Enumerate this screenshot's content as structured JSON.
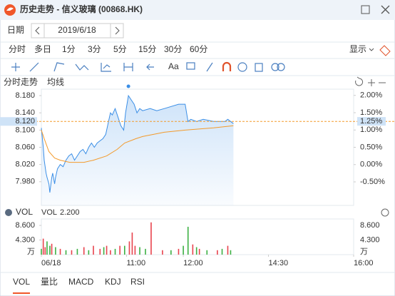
{
  "window": {
    "title": "历史走势 - 信义玻璃 (00868.HK)"
  },
  "date_bar": {
    "label": "日期",
    "date": "2019/6/18"
  },
  "period_tabs": {
    "items": [
      "分时",
      "多日",
      "1分",
      "3分",
      "5分",
      "15分",
      "30分",
      "60分"
    ],
    "active": 0,
    "display": "显示"
  },
  "toolbar": {
    "text_tool": "Aa"
  },
  "chart_header": {
    "tabs": [
      "分时走势",
      "均线"
    ]
  },
  "indicator_tabs": {
    "items": [
      "VOL",
      "量比",
      "MACD",
      "KDJ",
      "RSI"
    ],
    "active": 0
  },
  "chart_data": [
    {
      "type": "line",
      "xlim": [
        0,
        330
      ],
      "ylim": [
        7.925,
        8.195
      ],
      "yticks": [
        {
          "value": 8.18,
          "label": "8.180"
        },
        {
          "value": 8.14,
          "label": "8.140"
        },
        {
          "value": 8.1,
          "label": "8.100"
        },
        {
          "value": 8.06,
          "label": "8.060"
        },
        {
          "value": 8.02,
          "label": "8.020"
        },
        {
          "value": 7.98,
          "label": "7.980"
        }
      ],
      "y2lim": [
        -1.18,
        2.18
      ],
      "y2ticks": [
        {
          "value": 2,
          "label": "2.00%"
        },
        {
          "value": 1.5,
          "label": "1.50%"
        },
        {
          "value": 1,
          "label": "1.00%"
        },
        {
          "value": 0.5,
          "label": "0.50%"
        },
        {
          "value": 0,
          "label": "0.00%"
        },
        {
          "value": -0.5,
          "label": "-0.50%"
        }
      ],
      "last_price": {
        "value": 8.12,
        "label": "8.120",
        "change_value": 1.25,
        "change_label": "1.25%"
      },
      "series": [
        {
          "name": "分时走势",
          "color": "#3a8ee6",
          "x": [
            0,
            2,
            3,
            5,
            6,
            8,
            9,
            11,
            12,
            14,
            15,
            17,
            20,
            23,
            26,
            29,
            32,
            35,
            38,
            41,
            44,
            47,
            50,
            53,
            56,
            59,
            62,
            65,
            68,
            71,
            73,
            75,
            78,
            81,
            84,
            87,
            89,
            92,
            95,
            98,
            101,
            104,
            107,
            115,
            122,
            130,
            145,
            152,
            155,
            158,
            164,
            171,
            182,
            194,
            197,
            203
          ],
          "values": [
            8.105,
            8.06,
            8.03,
            8.0,
            7.99,
            7.975,
            7.955,
            7.99,
            8.0,
            7.975,
            7.99,
            8.01,
            8.02,
            8.015,
            8.03,
            8.04,
            8.045,
            8.03,
            8.04,
            8.05,
            8.055,
            8.045,
            8.06,
            8.07,
            8.06,
            8.07,
            8.075,
            8.08,
            8.09,
            8.12,
            8.14,
            8.135,
            8.15,
            8.13,
            8.11,
            8.1,
            8.14,
            8.18,
            8.17,
            8.16,
            8.14,
            8.15,
            8.145,
            8.15,
            8.145,
            8.15,
            8.16,
            8.16,
            8.12,
            8.125,
            8.12,
            8.125,
            8.12,
            8.12,
            8.125,
            8.115
          ]
        },
        {
          "name": "均线",
          "color": "#f39a2b",
          "x": [
            0,
            3,
            8,
            14,
            20,
            30,
            45,
            55,
            69,
            80,
            88,
            100,
            107,
            130,
            152,
            182,
            203
          ],
          "values": [
            8.1,
            8.08,
            8.05,
            8.035,
            8.03,
            8.025,
            8.025,
            8.03,
            8.04,
            8.055,
            8.07,
            8.08,
            8.085,
            8.095,
            8.1,
            8.105,
            8.11
          ]
        }
      ]
    },
    {
      "type": "bar",
      "title": "VOL",
      "y_unit": "万",
      "current": {
        "value": 2.2,
        "label": "2.200"
      },
      "xlim": [
        0,
        330
      ],
      "xticks": [
        {
          "value": 0,
          "label": "06/18"
        },
        {
          "value": 90,
          "label": "11:00"
        },
        {
          "value": 150,
          "label": "12:00"
        },
        {
          "value": 240,
          "label": "14:30"
        },
        {
          "value": 330,
          "label": "16:00"
        }
      ],
      "ylim": [
        0,
        10.5
      ],
      "yticks": [
        {
          "value": 8.6,
          "label": "8.600"
        },
        {
          "value": 4.3,
          "label": "4.300"
        }
      ],
      "series": [
        {
          "name": "VOL",
          "color": "#e8434d",
          "x": [
            2,
            4,
            11,
            20,
            32,
            45,
            55,
            62,
            69,
            73,
            83,
            93,
            96,
            99,
            116,
            128,
            145,
            160,
            167,
            186,
            197
          ],
          "values": [
            4.7,
            2.2,
            3.2,
            1.7,
            1.3,
            2.2,
            2.6,
            1.7,
            2.6,
            1.3,
            2.6,
            3.9,
            6.5,
            2.6,
            9.5,
            1.3,
            1.7,
            3.0,
            1.7,
            1.3,
            2.6
          ]
        },
        {
          "name": "VOL",
          "color": "#3cb043",
          "x": [
            0,
            6,
            9,
            15,
            26,
            38,
            50,
            66,
            78,
            88,
            104,
            110,
            137,
            150,
            155,
            164,
            175,
            191,
            200
          ],
          "values": [
            1.7,
            3.9,
            2.6,
            2.2,
            1.3,
            1.7,
            1.3,
            2.2,
            1.7,
            2.6,
            2.2,
            1.7,
            1.3,
            2.6,
            8.2,
            2.2,
            1.3,
            1.7,
            1.3
          ]
        }
      ]
    }
  ]
}
